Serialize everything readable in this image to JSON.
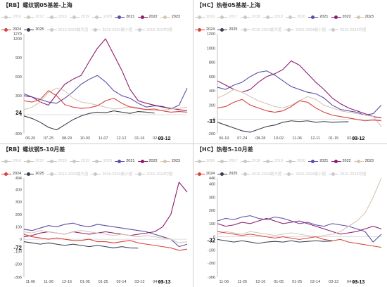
{
  "legend_colors": {
    "2016": "#c9c9c9",
    "2017": "#c9c9c9",
    "2018": "#c9c9c9",
    "2019": "#c9c9c9",
    "2020": "#c9c9c9",
    "2021": "#5b4ea8",
    "2022": "#8e1a6c",
    "2023": "#d6c6b4",
    "2024": "#d9423a",
    "2025": "#34404d",
    "2016-2024最大值": "#c9c9c9",
    "2016-2024最小值": "#c9c9c9",
    "2016-2024均值": "#c9c9c9"
  },
  "chart_data": [
    {
      "type": "line",
      "title": "【RB】螺纹钢05基差-上海",
      "legend": [
        "2016",
        "2017",
        "2018",
        "2019",
        "2020",
        "2021",
        "2022",
        "2023",
        "2024",
        "2025",
        "2016-2024最大值",
        "2016-2024最小值",
        "2016-2024均值"
      ],
      "legend_active": [
        "2021",
        "2022",
        "2023",
        "2024",
        "2025"
      ],
      "ylim": [
        -300,
        1279
      ],
      "yticks": [
        "1279",
        "1200",
        "900",
        "600",
        "300",
        "24",
        "0",
        "-300"
      ],
      "highlight_value": "24",
      "xticks": [
        "06-20",
        "07-25",
        "08-29",
        "10-03",
        "11-07",
        "12-12",
        "01-16",
        "02-20"
      ],
      "highlight_date": "03-12",
      "series": [
        {
          "name": "2021",
          "x": [
            0,
            0.05,
            0.1,
            0.15,
            0.2,
            0.25,
            0.3,
            0.35,
            0.4,
            0.45,
            0.5,
            0.55,
            0.6,
            0.65,
            0.7,
            0.75,
            0.8,
            0.85,
            0.9,
            0.95,
            1.0
          ],
          "values": [
            330,
            280,
            240,
            200,
            180,
            260,
            360,
            480,
            560,
            620,
            520,
            380,
            300,
            260,
            180,
            120,
            140,
            130,
            90,
            150,
            420
          ]
        },
        {
          "name": "2022",
          "x": [
            0,
            0.05,
            0.1,
            0.15,
            0.2,
            0.25,
            0.3,
            0.35,
            0.4,
            0.45,
            0.5,
            0.55,
            0.6,
            0.65,
            0.7,
            0.75,
            0.8,
            0.85,
            0.9,
            0.95,
            1.0
          ],
          "values": [
            300,
            280,
            200,
            150,
            320,
            480,
            560,
            620,
            840,
            1050,
            1200,
            950,
            700,
            400,
            220,
            180,
            150,
            120,
            100,
            80,
            60
          ]
        },
        {
          "name": "2023",
          "x": [
            0,
            0.05,
            0.1,
            0.15,
            0.2,
            0.25,
            0.3,
            0.35,
            0.4,
            0.45,
            0.5,
            0.55,
            0.6,
            0.65,
            0.7,
            0.75,
            0.8,
            0.85,
            0.9,
            0.95,
            1.0
          ],
          "values": [
            80,
            120,
            200,
            350,
            420,
            380,
            260,
            200,
            180,
            150,
            120,
            90,
            100,
            130,
            110,
            80,
            60,
            70,
            90,
            100,
            120
          ]
        },
        {
          "name": "2024",
          "x": [
            0,
            0.05,
            0.1,
            0.15,
            0.2,
            0.25,
            0.3,
            0.35,
            0.4,
            0.45,
            0.5,
            0.55,
            0.6,
            0.65,
            0.7,
            0.75,
            0.8,
            0.85,
            0.9,
            0.95,
            1.0
          ],
          "values": [
            220,
            200,
            240,
            380,
            300,
            160,
            120,
            100,
            110,
            140,
            220,
            260,
            180,
            120,
            100,
            80,
            90,
            60,
            40,
            50,
            40
          ]
        },
        {
          "name": "2025",
          "x": [
            0,
            0.05,
            0.1,
            0.15,
            0.2,
            0.25,
            0.3,
            0.35,
            0.4,
            0.45,
            0.5,
            0.55,
            0.6,
            0.65,
            0.7,
            0.75,
            0.8
          ],
          "values": [
            -20,
            -60,
            -120,
            -200,
            -240,
            -160,
            -80,
            -20,
            20,
            40,
            30,
            60,
            40,
            20,
            50,
            40,
            24
          ]
        }
      ]
    },
    {
      "type": "line",
      "title": "【HC】热卷05基差-上海",
      "legend": [
        "2016",
        "2017",
        "2018",
        "2019",
        "2020",
        "2021",
        "2022",
        "2023",
        "2024",
        "2025",
        "2016-2024最大值",
        "2016-2024最小值",
        "2016-2024均值"
      ],
      "legend_active": [
        "2021",
        "2022",
        "2023",
        "2024",
        "2025"
      ],
      "ylim": [
        -200,
        1200
      ],
      "yticks": [
        "1200",
        "1000",
        "800",
        "600",
        "400",
        "200",
        "0",
        "-33",
        "-200"
      ],
      "highlight_value": "-33",
      "xticks": [
        "06-19",
        "07-24",
        "08-28",
        "10-02",
        "11-06",
        "12-11",
        "01-15",
        "02-19"
      ],
      "highlight_date": "03-12",
      "series": [
        {
          "name": "2021",
          "x": [
            0,
            0.05,
            0.1,
            0.15,
            0.2,
            0.25,
            0.3,
            0.35,
            0.4,
            0.45,
            0.5,
            0.55,
            0.6,
            0.65,
            0.7,
            0.75,
            0.8,
            0.85,
            0.9,
            0.95,
            1.0
          ],
          "values": [
            450,
            420,
            480,
            520,
            600,
            660,
            680,
            620,
            540,
            460,
            420,
            380,
            360,
            300,
            200,
            140,
            120,
            100,
            60,
            80,
            200
          ]
        },
        {
          "name": "2022",
          "x": [
            0,
            0.05,
            0.1,
            0.15,
            0.2,
            0.25,
            0.3,
            0.35,
            0.4,
            0.45,
            0.5,
            0.55,
            0.6,
            0.65,
            0.7,
            0.75,
            0.8,
            0.85,
            0.9,
            0.95,
            1.0
          ],
          "values": [
            540,
            480,
            420,
            380,
            420,
            520,
            600,
            640,
            700,
            820,
            760,
            640,
            520,
            420,
            300,
            220,
            160,
            120,
            80,
            40,
            20
          ]
        },
        {
          "name": "2023",
          "x": [
            0,
            0.05,
            0.1,
            0.15,
            0.2,
            0.25,
            0.3,
            0.35,
            0.4,
            0.45,
            0.5,
            0.55,
            0.6,
            0.65,
            0.7,
            0.75,
            0.8,
            0.85,
            0.9,
            0.95,
            1.0
          ],
          "values": [
            300,
            350,
            420,
            380,
            320,
            260,
            220,
            180,
            160,
            200,
            260,
            320,
            280,
            200,
            160,
            120,
            100,
            80,
            60,
            40,
            -100
          ]
        },
        {
          "name": "2024",
          "x": [
            0,
            0.05,
            0.1,
            0.15,
            0.2,
            0.25,
            0.3,
            0.35,
            0.4,
            0.45,
            0.5,
            0.55,
            0.6,
            0.65,
            0.7,
            0.75,
            0.8,
            0.85,
            0.9,
            0.95,
            1.0
          ],
          "values": [
            160,
            180,
            240,
            280,
            200,
            160,
            120,
            100,
            120,
            180,
            260,
            240,
            160,
            100,
            60,
            40,
            20,
            0,
            -20,
            -10,
            -20
          ]
        },
        {
          "name": "2025",
          "x": [
            0,
            0.05,
            0.1,
            0.15,
            0.2,
            0.25,
            0.3,
            0.35,
            0.4,
            0.45,
            0.5,
            0.55,
            0.6,
            0.65,
            0.7,
            0.75,
            0.8
          ],
          "values": [
            -40,
            -80,
            -120,
            -160,
            -180,
            -140,
            -100,
            -80,
            -40,
            -20,
            -30,
            -20,
            -40,
            -30,
            -40,
            -35,
            -33
          ]
        }
      ]
    },
    {
      "type": "line",
      "title": "【RB】螺纹钢5-10月差",
      "legend": [
        "2016",
        "2017",
        "2018",
        "2019",
        "2020",
        "2021",
        "2022",
        "2023",
        "2024",
        "2025",
        "2016-2024最大值",
        "2016-2024最小值",
        "2016-2024均值"
      ],
      "legend_active": [
        "2021",
        "2022",
        "2023",
        "2024",
        "2025"
      ],
      "ylim": [
        -306,
        494
      ],
      "yticks": [
        "494",
        "400",
        "300",
        "200",
        "100",
        "0",
        "-72",
        "-100",
        "-200",
        "-306"
      ],
      "highlight_value": "-72",
      "xticks": [
        "11-06",
        "11-26",
        "12-16",
        "01-05",
        "01-25",
        "02-14",
        "03-13",
        "04-14"
      ],
      "highlight_date": "03-13",
      "series": [
        {
          "name": "2021",
          "x": [
            0,
            0.05,
            0.1,
            0.15,
            0.2,
            0.25,
            0.3,
            0.35,
            0.4,
            0.45,
            0.5,
            0.55,
            0.6,
            0.65,
            0.7,
            0.75,
            0.8,
            0.85,
            0.9,
            0.95,
            1.0
          ],
          "values": [
            80,
            70,
            90,
            110,
            100,
            120,
            130,
            110,
            100,
            120,
            110,
            100,
            90,
            80,
            70,
            60,
            40,
            20,
            0,
            -60,
            -40
          ]
        },
        {
          "name": "2022",
          "x": [
            0,
            0.05,
            0.1,
            0.15,
            0.2,
            0.25,
            0.3,
            0.35,
            0.4,
            0.45,
            0.5,
            0.55,
            0.6,
            0.65,
            0.7,
            0.75,
            0.8,
            0.85,
            0.9,
            0.95,
            1.0
          ],
          "values": [
            20,
            30,
            50,
            60,
            50,
            40,
            60,
            50,
            40,
            50,
            60,
            50,
            40,
            30,
            40,
            50,
            60,
            100,
            200,
            460,
            380
          ]
        },
        {
          "name": "2023",
          "x": [
            0,
            0.05,
            0.1,
            0.15,
            0.2,
            0.25,
            0.3,
            0.35,
            0.4,
            0.45,
            0.5,
            0.55,
            0.6,
            0.65,
            0.7,
            0.75,
            0.8,
            0.85,
            0.9,
            0.95,
            1.0
          ],
          "values": [
            60,
            50,
            70,
            60,
            50,
            40,
            60,
            70,
            60,
            50,
            40,
            30,
            40,
            30,
            20,
            30,
            20,
            10,
            0,
            -30,
            -20
          ]
        },
        {
          "name": "2024",
          "x": [
            0,
            0.05,
            0.1,
            0.15,
            0.2,
            0.25,
            0.3,
            0.35,
            0.4,
            0.45,
            0.5,
            0.55,
            0.6,
            0.65,
            0.7,
            0.75,
            0.8,
            0.85,
            0.9,
            0.95,
            1.0
          ],
          "values": [
            40,
            20,
            10,
            0,
            10,
            0,
            -10,
            -10,
            0,
            -20,
            -20,
            -30,
            -20,
            -10,
            -30,
            -40,
            -50,
            -60,
            -70,
            -90,
            -80
          ]
        },
        {
          "name": "2025",
          "x": [
            0,
            0.05,
            0.1,
            0.15,
            0.2,
            0.25,
            0.3,
            0.35,
            0.4,
            0.45,
            0.5,
            0.55,
            0.6,
            0.65,
            0.7
          ],
          "values": [
            -20,
            -30,
            -40,
            -30,
            -40,
            -50,
            -40,
            -50,
            -60,
            -50,
            -60,
            -70,
            -60,
            -70,
            -72
          ]
        }
      ]
    },
    {
      "type": "line",
      "title": "【HC】热卷5-10月差",
      "legend": [
        "2016",
        "2017",
        "2018",
        "2019",
        "2020",
        "2021",
        "2022",
        "2023",
        "2024",
        "2025",
        "2016-2024最大值",
        "2016-2024最小值",
        "2016-2024均值"
      ],
      "legend_active": [
        "2021",
        "2022",
        "2023",
        "2024",
        "2025"
      ],
      "ylim": [
        -306,
        446
      ],
      "yticks": [
        "446",
        "400",
        "300",
        "200",
        "100",
        "0",
        "-32",
        "-100",
        "-200",
        "-306"
      ],
      "highlight_value": "-32",
      "xticks": [
        "11-06",
        "11-26",
        "12-16",
        "01-05",
        "01-25",
        "02-14",
        "03-13",
        "04-14"
      ],
      "highlight_date": "03-13",
      "series": [
        {
          "name": "2021",
          "x": [
            0,
            0.05,
            0.1,
            0.15,
            0.2,
            0.25,
            0.3,
            0.35,
            0.4,
            0.45,
            0.5,
            0.55,
            0.6,
            0.65,
            0.7,
            0.75,
            0.8,
            0.85,
            0.9,
            0.95,
            1.0
          ],
          "values": [
            120,
            140,
            130,
            150,
            160,
            140,
            130,
            150,
            140,
            120,
            100,
            110,
            90,
            80,
            100,
            90,
            80,
            60,
            40,
            -40,
            20
          ]
        },
        {
          "name": "2022",
          "x": [
            0,
            0.05,
            0.1,
            0.15,
            0.2,
            0.25,
            0.3,
            0.35,
            0.4,
            0.45,
            0.5,
            0.55,
            0.6,
            0.65,
            0.7,
            0.75,
            0.8,
            0.85,
            0.9,
            0.95,
            1.0
          ],
          "values": [
            100,
            80,
            90,
            110,
            100,
            120,
            140,
            120,
            100,
            110,
            120,
            100,
            80,
            60,
            40,
            20,
            30,
            40,
            60,
            80,
            60
          ]
        },
        {
          "name": "2023",
          "x": [
            0,
            0.05,
            0.1,
            0.15,
            0.2,
            0.25,
            0.3,
            0.35,
            0.4,
            0.45,
            0.5,
            0.55,
            0.6,
            0.65,
            0.7,
            0.75,
            0.8,
            0.85,
            0.9,
            0.95,
            1.0
          ],
          "values": [
            20,
            40,
            30,
            20,
            40,
            30,
            20,
            10,
            20,
            30,
            20,
            10,
            0,
            10,
            20,
            40,
            80,
            120,
            180,
            300,
            446
          ]
        },
        {
          "name": "2024",
          "x": [
            0,
            0.05,
            0.1,
            0.15,
            0.2,
            0.25,
            0.3,
            0.35,
            0.4,
            0.45,
            0.5,
            0.55,
            0.6,
            0.65,
            0.7,
            0.75,
            0.8,
            0.85,
            0.9,
            0.95,
            1.0
          ],
          "values": [
            40,
            30,
            20,
            10,
            20,
            10,
            0,
            -10,
            0,
            -10,
            -20,
            -10,
            0,
            -20,
            -30,
            -20,
            -40,
            -50,
            -60,
            -70,
            -80
          ]
        },
        {
          "name": "2025",
          "x": [
            0,
            0.05,
            0.1,
            0.15,
            0.2,
            0.25,
            0.3,
            0.35,
            0.4,
            0.45,
            0.5,
            0.55,
            0.6,
            0.65,
            0.7
          ],
          "values": [
            -20,
            -30,
            -40,
            -30,
            -40,
            -50,
            -40,
            -35,
            -40,
            -30,
            -40,
            -35,
            -30,
            -35,
            -32
          ]
        }
      ]
    }
  ]
}
